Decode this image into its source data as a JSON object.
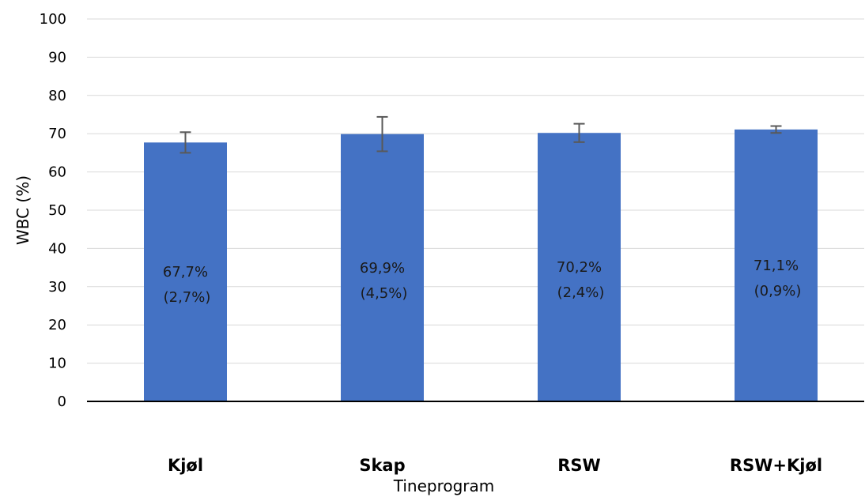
{
  "chart_data": {
    "type": "bar",
    "categories": [
      "Kjøl",
      "Skap",
      "RSW",
      "RSW+Kjøl"
    ],
    "values": [
      67.7,
      69.9,
      70.2,
      71.1
    ],
    "errors": [
      2.7,
      4.5,
      2.4,
      0.9
    ],
    "data_labels": [
      {
        "value": "67,7%",
        "sd": "(2,7%)"
      },
      {
        "value": "69,9%",
        "sd": "(4,5%)"
      },
      {
        "value": "70,2%",
        "sd": "(2,4%)"
      },
      {
        "value": "71,1%",
        "sd": "(0,9%)"
      }
    ],
    "xlabel": "Tineprogram",
    "ylabel": "WBC (%)",
    "ylim": [
      0,
      100
    ],
    "yticks": [
      0,
      10,
      20,
      30,
      40,
      50,
      60,
      70,
      80,
      90,
      100
    ],
    "grid": true,
    "legend": "none",
    "colors": {
      "bar": "#4472C4",
      "error_bar": "#595959",
      "grid": "#d9d9d9",
      "axis": "#000000"
    }
  }
}
